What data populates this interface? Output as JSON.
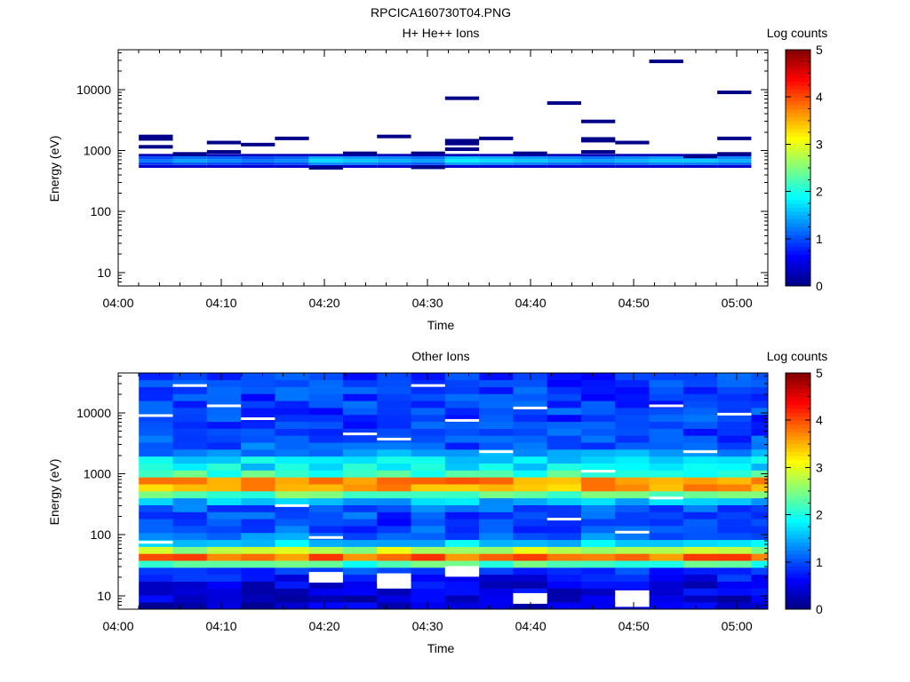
{
  "figure": {
    "title": "RPCICA160730T04.PNG"
  },
  "colors": {
    "background": "#ffffff",
    "axis": "#000000",
    "colormap": [
      "#00007f",
      "#0000ff",
      "#007fff",
      "#00ffff",
      "#7fff7f",
      "#ffff00",
      "#ff7f00",
      "#ff0000",
      "#7f0000"
    ]
  },
  "chart_data": [
    {
      "type": "heatmap",
      "title": "H+ He++ Ions",
      "xlabel": "Time",
      "ylabel": "Energy (eV)",
      "x_ticks": [
        "04:00",
        "04:10",
        "04:20",
        "04:30",
        "04:40",
        "04:50",
        "05:00"
      ],
      "y_ticks": [
        "10",
        "100",
        "1000",
        "10000"
      ],
      "y_scale": "log",
      "ylim": [
        6,
        45000
      ],
      "xlim_min": [
        0,
        63
      ],
      "colorbar": {
        "label": "Log counts",
        "range": [
          0,
          5
        ],
        "ticks": [
          "0",
          "1",
          "2",
          "3",
          "4",
          "5"
        ]
      },
      "time_bins_min": [
        2,
        5.3,
        8.6,
        11.9,
        15.2,
        18.5,
        21.8,
        25.1,
        28.4,
        31.7,
        35,
        38.3,
        41.6,
        44.9,
        48.2,
        51.5,
        54.8,
        58.1,
        61.4,
        63
      ],
      "spectra": [
        {
          "core_log_counts": 1.0,
          "outliers_eV": [
            1700,
            1550,
            1150
          ]
        },
        {
          "core_log_counts": 1.2,
          "outliers_eV": [
            880
          ]
        },
        {
          "core_log_counts": 1.1,
          "outliers_eV": [
            1350,
            950
          ]
        },
        {
          "core_log_counts": 1.0,
          "outliers_eV": [
            1250
          ]
        },
        {
          "core_log_counts": 1.1,
          "outliers_eV": [
            1580
          ]
        },
        {
          "core_log_counts": 1.5,
          "outliers_eV": [
            520
          ]
        },
        {
          "core_log_counts": 1.4,
          "outliers_eV": [
            900
          ]
        },
        {
          "core_log_counts": 1.3,
          "outliers_eV": [
            1700
          ]
        },
        {
          "core_log_counts": 1.2,
          "outliers_eV": [
            900,
            530
          ]
        },
        {
          "core_log_counts": 1.6,
          "outliers_eV": [
            7200,
            1450,
            1300,
            1050
          ]
        },
        {
          "core_log_counts": 1.5,
          "outliers_eV": [
            1580
          ]
        },
        {
          "core_log_counts": 1.4,
          "outliers_eV": [
            900
          ]
        },
        {
          "core_log_counts": 1.3,
          "outliers_eV": [
            6000
          ]
        },
        {
          "core_log_counts": 1.2,
          "outliers_eV": [
            3000,
            1550,
            1450,
            950
          ]
        },
        {
          "core_log_counts": 1.3,
          "outliers_eV": [
            1350
          ]
        },
        {
          "core_log_counts": 1.4,
          "outliers_eV": [
            29000
          ]
        },
        {
          "core_log_counts": 1.4,
          "outliers_eV": [
            800
          ]
        },
        {
          "core_log_counts": 1.3,
          "outliers_eV": [
            9000,
            1580,
            880
          ]
        }
      ]
    },
    {
      "type": "heatmap",
      "title": "Other Ions",
      "xlabel": "Time",
      "ylabel": "Energy (eV)",
      "x_ticks": [
        "04:00",
        "04:10",
        "04:20",
        "04:30",
        "04:40",
        "04:50",
        "05:00"
      ],
      "y_ticks": [
        "10",
        "100",
        "1000",
        "10000"
      ],
      "y_scale": "log",
      "ylim": [
        6,
        45000
      ],
      "xlim_min": [
        0,
        63
      ],
      "colorbar": {
        "label": "Log counts",
        "range": [
          0,
          5
        ],
        "ticks": [
          "0",
          "1",
          "2",
          "3",
          "4",
          "5"
        ]
      },
      "time_bins_min": [
        2,
        5.3,
        8.6,
        11.9,
        15.2,
        18.5,
        21.8,
        25.1,
        28.4,
        31.7,
        35,
        38.3,
        41.6,
        44.9,
        48.2,
        51.5,
        54.8,
        58.1,
        61.4,
        63
      ],
      "energy_profile": [
        {
          "eV": 7,
          "log_counts": 0.4
        },
        {
          "eV": 15,
          "log_counts": 0.5
        },
        {
          "eV": 25,
          "log_counts": 0.8
        },
        {
          "eV": 33,
          "log_counts": 2.2
        },
        {
          "eV": 38,
          "log_counts": 3.6
        },
        {
          "eV": 44,
          "log_counts": 3.9
        },
        {
          "eV": 50,
          "log_counts": 3.3
        },
        {
          "eV": 60,
          "log_counts": 2.4
        },
        {
          "eV": 80,
          "log_counts": 1.3
        },
        {
          "eV": 150,
          "log_counts": 0.9
        },
        {
          "eV": 300,
          "log_counts": 1.1
        },
        {
          "eV": 450,
          "log_counts": 2.3
        },
        {
          "eV": 600,
          "log_counts": 3.6
        },
        {
          "eV": 750,
          "log_counts": 3.9
        },
        {
          "eV": 900,
          "log_counts": 2.6
        },
        {
          "eV": 1200,
          "log_counts": 1.5
        },
        {
          "eV": 1500,
          "log_counts": 2.3
        },
        {
          "eV": 1800,
          "log_counts": 1.5
        },
        {
          "eV": 3000,
          "log_counts": 1.0
        },
        {
          "eV": 10000,
          "log_counts": 0.9
        },
        {
          "eV": 40000,
          "log_counts": 0.9
        }
      ],
      "empty_cells": [
        {
          "bin": 0,
          "eV": 75
        },
        {
          "bin": 0,
          "eV": 9000
        },
        {
          "bin": 1,
          "eV": 28000
        },
        {
          "bin": 2,
          "eV": 13000
        },
        {
          "bin": 3,
          "eV": 8000
        },
        {
          "bin": 4,
          "eV": 300
        },
        {
          "bin": 5,
          "eV": 20
        },
        {
          "bin": 5,
          "eV": 90
        },
        {
          "bin": 6,
          "eV": 4500
        },
        {
          "bin": 7,
          "eV": 16
        },
        {
          "bin": 7,
          "eV": 19
        },
        {
          "bin": 7,
          "eV": 3700
        },
        {
          "bin": 8,
          "eV": 28000
        },
        {
          "bin": 9,
          "eV": 25
        },
        {
          "bin": 9,
          "eV": 7500
        },
        {
          "bin": 10,
          "eV": 2300
        },
        {
          "bin": 11,
          "eV": 9
        },
        {
          "bin": 11,
          "eV": 12000
        },
        {
          "bin": 12,
          "eV": 180
        },
        {
          "bin": 13,
          "eV": 1100
        },
        {
          "bin": 14,
          "eV": 8
        },
        {
          "bin": 14,
          "eV": 10
        },
        {
          "bin": 14,
          "eV": 110
        },
        {
          "bin": 15,
          "eV": 400
        },
        {
          "bin": 15,
          "eV": 13000
        },
        {
          "bin": 16,
          "eV": 2300
        },
        {
          "bin": 17,
          "eV": 9500
        }
      ]
    }
  ]
}
